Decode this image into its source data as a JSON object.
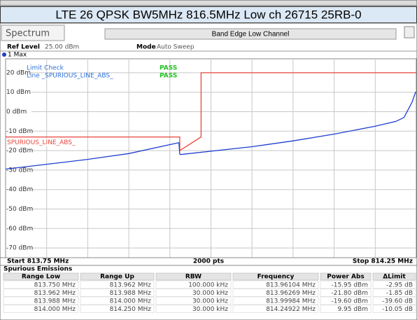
{
  "banner": "LTE 26 QPSK BW5MHz 816.5MHz Low ch 26715 25RB-0",
  "window": {
    "tab": "Spectrum",
    "header": "Band Edge Low Channel",
    "ref_level": "Ref Level",
    "ref_value": "25.00 dBm",
    "mode": "Mode",
    "mode_value": "Auto Sweep",
    "trace_label": "1 Max"
  },
  "limit_check": {
    "title": "Limit Check",
    "title_result": "PASS",
    "line": "Line _SPURIOUS_LINE_ABS_",
    "line_result": "PASS"
  },
  "chart_data": {
    "type": "line",
    "xlim": [
      813.75,
      814.25
    ],
    "xticks": [
      813.8,
      813.85,
      813.9,
      813.95,
      814.0,
      814.05,
      814.1,
      814.15,
      814.2
    ],
    "ylim": [
      -75,
      25
    ],
    "yticks": [
      {
        "value": 20,
        "label": "20 dBm"
      },
      {
        "value": 10,
        "label": "10 dBm"
      },
      {
        "value": 0,
        "label": "0 dBm"
      },
      {
        "value": -10,
        "label": "-10 dBm"
      },
      {
        "value": -20,
        "label": "-20 dBm"
      },
      {
        "value": -30,
        "label": "-30 dBm"
      },
      {
        "value": -40,
        "label": "-40 dBm"
      },
      {
        "value": -50,
        "label": "-50 dBm"
      },
      {
        "value": -60,
        "label": "-60 dBm"
      },
      {
        "value": -70,
        "label": "-70 dBm"
      }
    ],
    "grid": true,
    "series": [
      {
        "name": "SPURIOUS_LINE_ABS_",
        "color": "#e8463c",
        "x": [
          813.75,
          813.962,
          813.962,
          813.988,
          813.988,
          814.25
        ],
        "values": [
          -13,
          -13,
          -20,
          -13,
          20,
          20
        ]
      },
      {
        "name": "1 Max",
        "color": "#1f3fd0",
        "x": [
          813.75,
          813.8,
          813.85,
          813.9,
          813.96,
          813.961,
          813.962,
          813.963,
          814.05,
          814.1,
          814.15,
          814.2,
          814.225,
          814.235,
          814.24,
          814.245,
          814.249,
          814.25
        ],
        "values": [
          -29.5,
          -27,
          -24.5,
          -21.5,
          -16,
          -15.95,
          -21.8,
          -22,
          -18,
          -15,
          -11.5,
          -7.5,
          -5,
          -3,
          1,
          5,
          9.95,
          10
        ]
      }
    ],
    "start_label": "Start 813.75 MHz",
    "points_label": "2000 pts",
    "stop_label": "Stop 814.25 MHz"
  },
  "table": {
    "title": "Spurious Emissions",
    "headers": [
      "Range Low",
      "Range Up",
      "RBW",
      "Frequency",
      "Power Abs",
      "ΔLimit"
    ],
    "rows": [
      [
        "813.750 MHz",
        "813.962 MHz",
        "100.000 kHz",
        "813.96104 MHz",
        "-15.95 dBm",
        "-2.95 dB"
      ],
      [
        "813.962 MHz",
        "813.988 MHz",
        "30.000 kHz",
        "813.96269 MHz",
        "-21.80 dBm",
        "-1.85 dB"
      ],
      [
        "813.988 MHz",
        "814.000 MHz",
        "30.000 kHz",
        "813.99984 MHz",
        "-19.60 dBm",
        "-39.60 dB"
      ],
      [
        "814.000 MHz",
        "814.250 MHz",
        "30.000 kHz",
        "814.24922 MHz",
        "9.95 dBm",
        "-10.05 dB"
      ]
    ]
  }
}
